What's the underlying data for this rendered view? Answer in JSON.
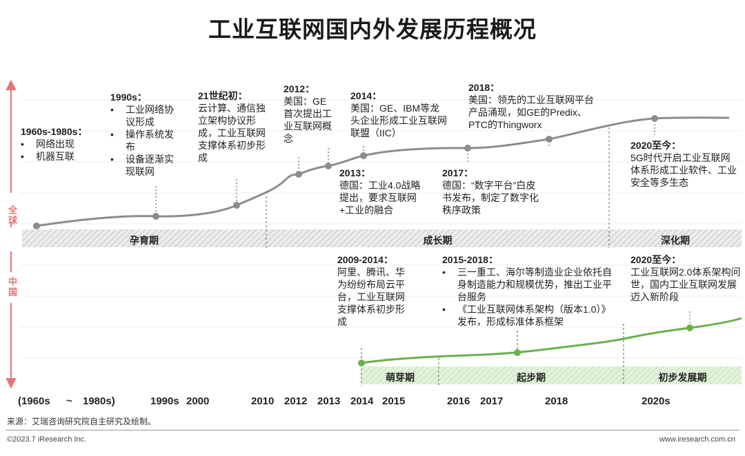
{
  "title": "工业互联网国内外发展历程概况",
  "regions": {
    "global": "全球",
    "china": "中国"
  },
  "periods_global": [
    "孕育期",
    "成长期",
    "深化期"
  ],
  "periods_china": [
    "萌芽期",
    "起步期",
    "初步发展期"
  ],
  "global_events": [
    {
      "head": "1960s-1980s：",
      "bullets": [
        "网络出现",
        "机器互联"
      ]
    },
    {
      "head": "1990s：",
      "bullets": [
        "工业网络协议形成",
        "操作系统发布",
        "设备逐渐实现联网"
      ]
    },
    {
      "head": "21世纪初：",
      "text": "云计算、通信独立架构协议形成，工业互联网支撑体系初步形成"
    },
    {
      "head": "2012：",
      "text": "美国：GE首次提出工业互联网概念"
    },
    {
      "head": "2014：",
      "text": "美国：GE、IBM等龙头企业形成工业互联网联盟（IIC）"
    },
    {
      "head": "2013：",
      "text": "德国：工业4.0战略提出，要求互联网+工业的融合"
    },
    {
      "head": "2018：",
      "text": "美国：领先的工业互联网平台产品涌现，如GE的Predix、PTC的Thingworx"
    },
    {
      "head": "2017：",
      "text": "德国：“数字平台”白皮书发布，制定了数字化秩序政策"
    },
    {
      "head": "2020至今：",
      "text": "5G时代开启工业互联网体系形成工业软件、工业安全等多生态"
    }
  ],
  "china_events": [
    {
      "head": "2009-2014：",
      "text": "阿里、腾讯、华为纷纷布局云平台，工业互联网支撑体系初步形成"
    },
    {
      "head": "2015-2018：",
      "bullets": [
        "三一重工、海尔等制造业企业依托自身制造能力和规模优势，推出工业平台服务",
        "《工业互联网体系架构（版本1.0）》发布，形成标准体系框架"
      ]
    },
    {
      "head": "2020至今：",
      "text": "工业互联网2.0体系架构问世，国内工业互联网发展迈入新阶段"
    }
  ],
  "x_labels": [
    "(1960s",
    "~",
    "1980s)",
    "1990s",
    "2000",
    "2010",
    "2012",
    "2013",
    "2014",
    "2015",
    "2016",
    "2017",
    "2018",
    "2020s"
  ],
  "source": "来源：艾瑞咨询研究院自主研究及绘制。",
  "copyright": "©2023.7 iResearch Inc.",
  "website": "www.iresearch.com.cn",
  "colors": {
    "global_line": "#8c8c8c",
    "china_line": "#6ab04c",
    "arrow": "#e57373",
    "band_gray": "#e6e6e6",
    "band_green": "#dff0d6"
  }
}
